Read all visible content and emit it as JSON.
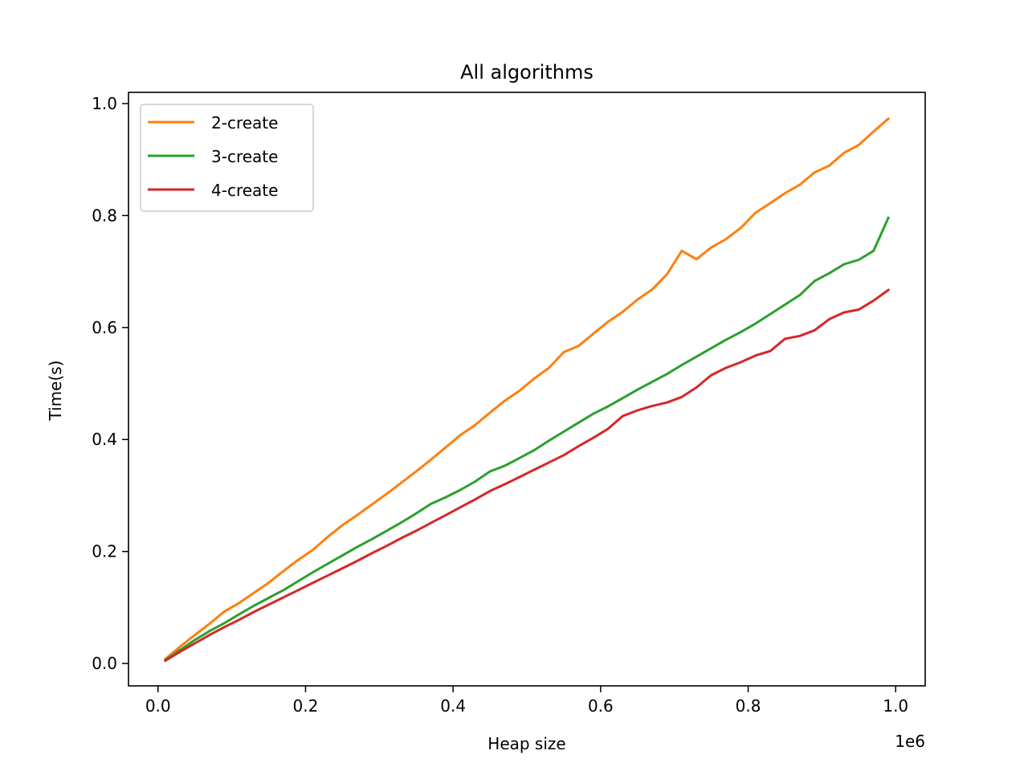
{
  "chart_data": {
    "type": "line",
    "title": "All algorithms",
    "xlabel": "Heap size",
    "ylabel": "Time(s)",
    "x_offset_label": "1e6",
    "xlim": [
      -40000,
      1040000
    ],
    "ylim": [
      -0.04,
      1.02
    ],
    "xticks": [
      0,
      200000,
      400000,
      600000,
      800000,
      1000000
    ],
    "xtick_labels": [
      "0.0",
      "0.2",
      "0.4",
      "0.6",
      "0.8",
      "1.0"
    ],
    "yticks": [
      0.0,
      0.2,
      0.4,
      0.6,
      0.8,
      1.0
    ],
    "ytick_labels": [
      "0.0",
      "0.2",
      "0.4",
      "0.6",
      "0.8",
      "1.0"
    ],
    "legend_position": "upper-left",
    "grid": false,
    "x": [
      10000,
      30000,
      50000,
      70000,
      90000,
      110000,
      130000,
      150000,
      170000,
      190000,
      210000,
      230000,
      250000,
      270000,
      290000,
      310000,
      330000,
      350000,
      370000,
      390000,
      410000,
      430000,
      450000,
      470000,
      490000,
      510000,
      530000,
      550000,
      570000,
      590000,
      610000,
      630000,
      650000,
      670000,
      690000,
      710000,
      730000,
      750000,
      770000,
      790000,
      810000,
      830000,
      850000,
      870000,
      890000,
      910000,
      930000,
      950000,
      970000,
      990000
    ],
    "series": [
      {
        "name": "2-create",
        "color": "#ff7f0e",
        "values": [
          0.008,
          0.03,
          0.051,
          0.071,
          0.093,
          0.108,
          0.126,
          0.144,
          0.165,
          0.185,
          0.203,
          0.226,
          0.247,
          0.265,
          0.284,
          0.303,
          0.323,
          0.343,
          0.364,
          0.386,
          0.408,
          0.426,
          0.448,
          0.469,
          0.487,
          0.509,
          0.528,
          0.556,
          0.567,
          0.589,
          0.61,
          0.628,
          0.65,
          0.668,
          0.695,
          0.737,
          0.722,
          0.743,
          0.758,
          0.778,
          0.805,
          0.822,
          0.84,
          0.855,
          0.877,
          0.889,
          0.912,
          0.926,
          0.95,
          0.973
        ]
      },
      {
        "name": "3-create",
        "color": "#2ca02c",
        "values": [
          0.006,
          0.024,
          0.042,
          0.058,
          0.072,
          0.088,
          0.103,
          0.117,
          0.131,
          0.147,
          0.163,
          0.178,
          0.193,
          0.208,
          0.222,
          0.237,
          0.252,
          0.268,
          0.285,
          0.297,
          0.31,
          0.325,
          0.343,
          0.353,
          0.367,
          0.381,
          0.398,
          0.414,
          0.43,
          0.446,
          0.459,
          0.474,
          0.489,
          0.503,
          0.517,
          0.533,
          0.548,
          0.563,
          0.578,
          0.592,
          0.607,
          0.624,
          0.641,
          0.658,
          0.683,
          0.697,
          0.713,
          0.721,
          0.737,
          0.796
        ]
      },
      {
        "name": "4-create",
        "color": "#d62728",
        "values": [
          0.005,
          0.021,
          0.036,
          0.051,
          0.065,
          0.078,
          0.092,
          0.105,
          0.118,
          0.131,
          0.144,
          0.157,
          0.17,
          0.183,
          0.197,
          0.21,
          0.224,
          0.237,
          0.251,
          0.265,
          0.279,
          0.293,
          0.308,
          0.32,
          0.333,
          0.346,
          0.359,
          0.372,
          0.388,
          0.403,
          0.419,
          0.442,
          0.452,
          0.46,
          0.466,
          0.476,
          0.493,
          0.515,
          0.528,
          0.538,
          0.55,
          0.558,
          0.58,
          0.585,
          0.595,
          0.615,
          0.627,
          0.632,
          0.648,
          0.667
        ]
      }
    ]
  }
}
